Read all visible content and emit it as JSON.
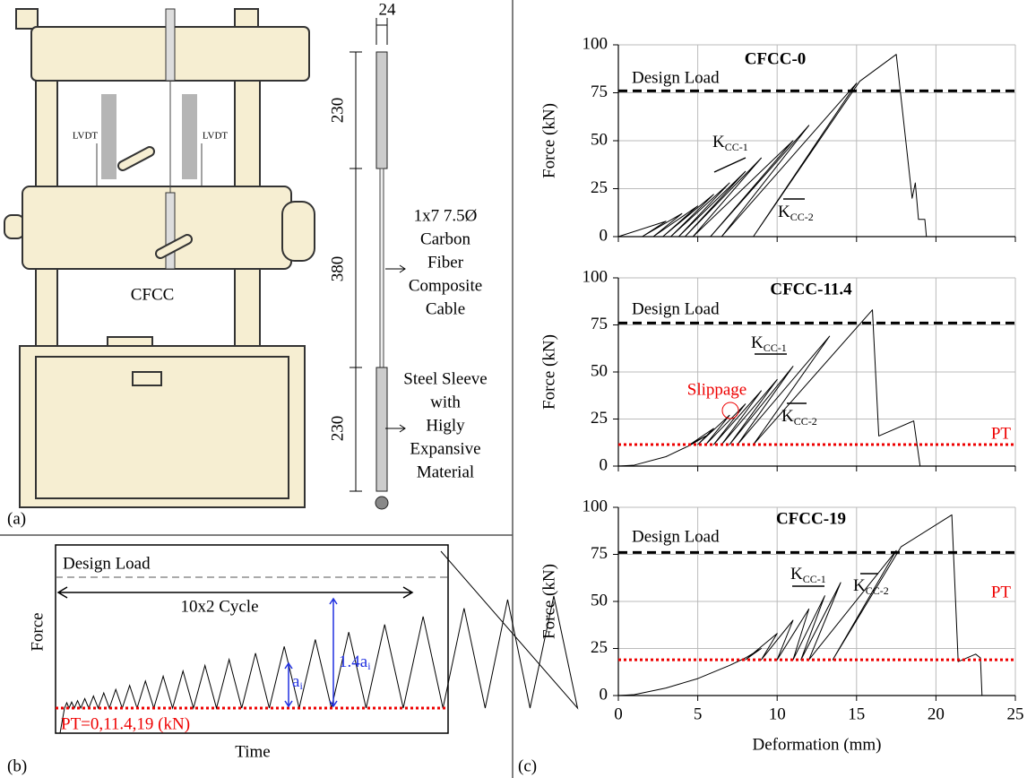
{
  "panel_a": {
    "label": "(a)",
    "lvdt": [
      "LVDT",
      "LVDT"
    ],
    "specimen": "CFCC",
    "width": "24",
    "lengths": [
      "230",
      "380",
      "230"
    ],
    "cable_text": [
      "1x7 7.5Ø",
      "Carbon",
      "Fiber",
      "Composite",
      "Cable"
    ],
    "sleeve_text": [
      "Steel Sleeve",
      "with",
      "Higly",
      "Expansive",
      "Material"
    ]
  },
  "panel_b": {
    "label": "(b)",
    "design_load": "Design Load",
    "cycles": "10x2 Cycle",
    "ylabel": "Force",
    "xlabel": "Time",
    "pt": "PT=0,11.4,19 (kN)",
    "amp1": {
      "base": "a",
      "sub": "i"
    },
    "amp2": {
      "base": "1.4a",
      "sub": "i"
    }
  },
  "panel_c_label": "(c)",
  "chart_data": [
    {
      "type": "line",
      "title": "CFCC-0",
      "ylabel": "Force (kN)",
      "xlim": [
        0,
        25
      ],
      "ylim": [
        0,
        100
      ],
      "xticks": [
        0,
        5,
        10,
        15,
        20,
        25
      ],
      "yticks": [
        0,
        25,
        50,
        75,
        100
      ],
      "grid": true,
      "show_xtick_labels": false,
      "design_load": {
        "label": "Design Load",
        "value": 76
      },
      "k_labels": [
        {
          "base": "K",
          "sub": "CC-1"
        },
        {
          "base": "K",
          "sub": "CC-2"
        }
      ],
      "series": [
        {
          "color": "#000000",
          "x": [
            0,
            3,
            1.5,
            4,
            2.2,
            5,
            2.8,
            6,
            3.3,
            7,
            3.8,
            8,
            4.2,
            9,
            4.7,
            11,
            5.8,
            12,
            6.5,
            15,
            8.5,
            15.2,
            17.5,
            18.5,
            18.7,
            18.9,
            19.3,
            19.4
          ],
          "values": [
            0,
            8,
            0,
            12,
            0,
            16,
            0,
            22,
            0,
            28,
            0,
            34,
            0,
            41,
            0,
            50,
            0,
            58,
            0,
            80,
            0,
            81,
            95,
            20,
            28,
            9,
            9,
            0
          ]
        }
      ]
    },
    {
      "type": "line",
      "title": "CFCC-11.4",
      "ylabel": "Force (kN)",
      "xlim": [
        0,
        25
      ],
      "ylim": [
        0,
        100
      ],
      "xticks": [
        0,
        5,
        10,
        15,
        20,
        25
      ],
      "yticks": [
        0,
        25,
        50,
        75,
        100
      ],
      "grid": true,
      "show_xtick_labels": false,
      "design_load": {
        "label": "Design Load",
        "value": 76
      },
      "pt": {
        "label": "PT",
        "value": 11.4
      },
      "annotation": "Slippage",
      "k_labels": [
        {
          "base": "K",
          "sub": "CC-1"
        },
        {
          "base": "K",
          "sub": "CC-2"
        }
      ],
      "series": [
        {
          "color": "#000000",
          "x": [
            0,
            1,
            3,
            4.5,
            5.5,
            4.5,
            6,
            5,
            7,
            5.5,
            8,
            6,
            9,
            6.5,
            10,
            7,
            11,
            7.5,
            13.3,
            8.5,
            16,
            16.4,
            18.6,
            19
          ],
          "values": [
            0,
            0.5,
            5,
            11,
            16,
            11.4,
            20,
            11.4,
            27,
            11.4,
            33,
            11.4,
            40,
            11.4,
            46,
            11.4,
            53,
            11.4,
            69,
            11.4,
            83,
            16,
            24,
            0
          ]
        }
      ]
    },
    {
      "type": "line",
      "title": "CFCC-19",
      "ylabel": "Force (kN)",
      "xlabel": "Deformation (mm)",
      "xlim": [
        0,
        25
      ],
      "ylim": [
        0,
        100
      ],
      "xticks": [
        0,
        5,
        10,
        15,
        20,
        25
      ],
      "yticks": [
        0,
        25,
        50,
        75,
        100
      ],
      "grid": true,
      "show_xtick_labels": true,
      "design_load": {
        "label": "Design Load",
        "value": 76
      },
      "pt": {
        "label": "PT",
        "value": 19
      },
      "k_labels": [
        {
          "base": "K",
          "sub": "CC-1"
        },
        {
          "base": "K",
          "sub": "CC-2"
        }
      ],
      "series": [
        {
          "color": "#000000",
          "x": [
            0,
            1,
            3,
            5,
            7,
            8,
            9,
            8,
            10,
            9,
            11,
            10,
            12,
            11,
            13,
            11.5,
            14,
            12,
            17.5,
            13.5,
            17.8,
            21,
            21.4,
            22.5,
            22.8,
            22.9
          ],
          "values": [
            0,
            0.5,
            4,
            9,
            16,
            20,
            25,
            19,
            33,
            19,
            40,
            19,
            46,
            19,
            53,
            19,
            60,
            19,
            77,
            19,
            79,
            96,
            18,
            22,
            20,
            0
          ]
        }
      ]
    }
  ]
}
